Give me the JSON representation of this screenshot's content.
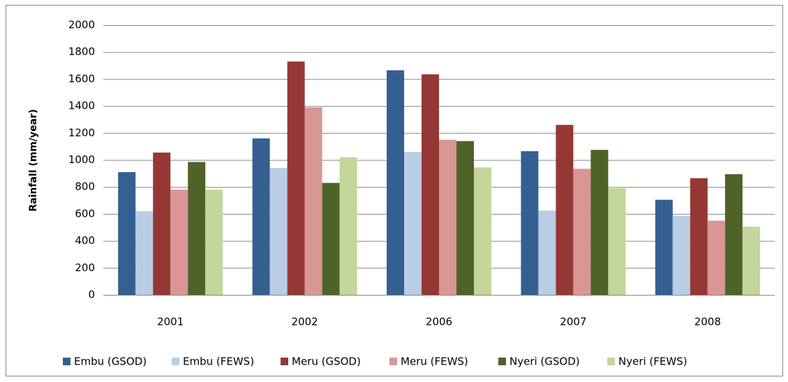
{
  "chart_data": {
    "type": "bar",
    "y_label": "Rainfall (mm/year)",
    "categories": [
      "2001",
      "2002",
      "2006",
      "2007",
      "2008"
    ],
    "series": [
      {
        "name": "Embu (GSOD)",
        "color": "#355f91",
        "values": [
          910,
          1160,
          1665,
          1065,
          705
        ]
      },
      {
        "name": "Embu (FEWS)",
        "color": "#b9cde5",
        "values": [
          620,
          940,
          1060,
          625,
          585
        ]
      },
      {
        "name": "Meru (GSOD)",
        "color": "#953735",
        "values": [
          1055,
          1730,
          1635,
          1260,
          865
        ]
      },
      {
        "name": "Meru (FEWS)",
        "color": "#d99694",
        "values": [
          780,
          1390,
          1150,
          935,
          550
        ]
      },
      {
        "name": "Nyeri (GSOD)",
        "color": "#4f6228",
        "values": [
          985,
          830,
          1140,
          1075,
          895
        ]
      },
      {
        "name": "Nyeri (FEWS)",
        "color": "#c3d69b",
        "values": [
          780,
          1020,
          945,
          790,
          505
        ]
      }
    ],
    "ylim": [
      0,
      2000
    ],
    "yticks": [
      0,
      200,
      400,
      600,
      800,
      1000,
      1200,
      1400,
      1600,
      1800,
      2000
    ],
    "grid": true,
    "legend": "bottom"
  }
}
